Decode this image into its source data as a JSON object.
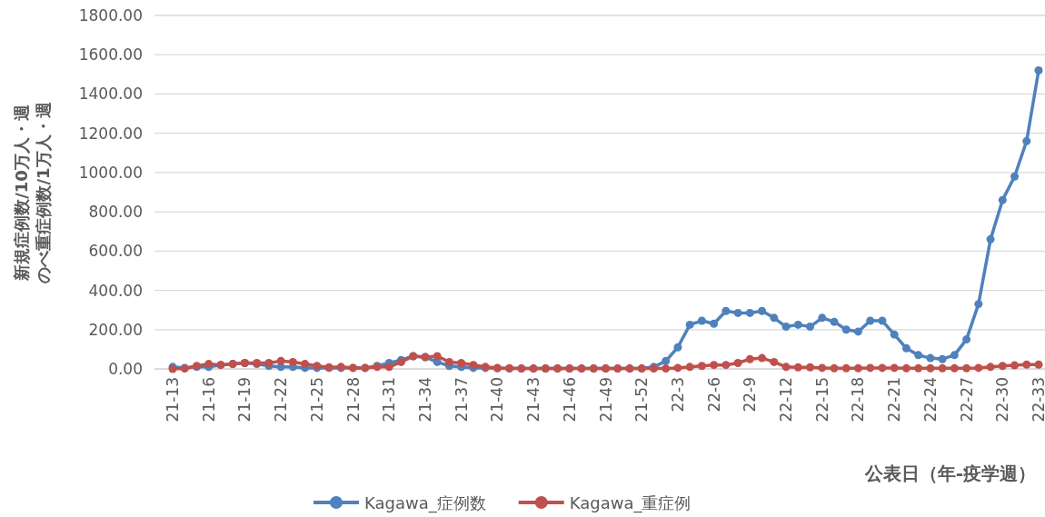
{
  "chart_data": {
    "type": "line",
    "xlabel": "公表日（年-疫学週）",
    "ylabel": "新規症例数/10万人・週のべ重症例数/1万人・週",
    "categories": [
      "21-13",
      null,
      null,
      "21-16",
      null,
      null,
      "21-19",
      null,
      null,
      "21-22",
      null,
      null,
      "21-25",
      null,
      null,
      "21-28",
      null,
      null,
      "21-31",
      null,
      null,
      "21-34",
      null,
      null,
      "21-37",
      null,
      null,
      "21-40",
      null,
      null,
      "21-43",
      null,
      null,
      "21-46",
      null,
      null,
      "21-49",
      null,
      null,
      "21-52",
      null,
      null,
      "22-3",
      null,
      null,
      "22-6",
      null,
      null,
      "22-9",
      null,
      null,
      "22-12",
      null,
      null,
      "22-15",
      null,
      null,
      "22-18",
      null,
      null,
      "22-21",
      null,
      null,
      "22-24",
      null,
      null,
      "22-27",
      null,
      null,
      "22-30",
      null,
      null,
      "22-33"
    ],
    "series": [
      {
        "name": "Kagawa_症例数",
        "color": "#4f81bd",
        "values": [
          10,
          5,
          10,
          10,
          20,
          25,
          30,
          25,
          15,
          10,
          10,
          5,
          5,
          5,
          5,
          5,
          5,
          15,
          30,
          45,
          65,
          60,
          35,
          15,
          10,
          5,
          5,
          3,
          2,
          2,
          2,
          2,
          2,
          2,
          2,
          2,
          2,
          2,
          2,
          2,
          10,
          40,
          110,
          225,
          245,
          230,
          295,
          285,
          285,
          295,
          260,
          215,
          225,
          215,
          260,
          240,
          200,
          190,
          245,
          245,
          175,
          105,
          70,
          55,
          50,
          70,
          150,
          330,
          660,
          860,
          980,
          1160,
          1520
        ]
      },
      {
        "name": "Kagawa_重症例",
        "color": "#c0504d",
        "values": [
          0,
          2,
          15,
          25,
          20,
          25,
          30,
          30,
          30,
          40,
          35,
          25,
          15,
          8,
          10,
          5,
          5,
          10,
          10,
          35,
          65,
          60,
          65,
          35,
          30,
          20,
          10,
          5,
          3,
          2,
          2,
          2,
          2,
          2,
          2,
          2,
          2,
          2,
          2,
          2,
          2,
          2,
          5,
          10,
          15,
          20,
          20,
          30,
          50,
          55,
          35,
          10,
          8,
          8,
          5,
          3,
          3,
          3,
          5,
          5,
          5,
          3,
          3,
          3,
          3,
          3,
          3,
          5,
          10,
          15,
          18,
          22,
          22
        ]
      }
    ],
    "ylim": [
      0,
      1800
    ],
    "yticks": [
      {
        "value": 0,
        "label": "0.00"
      },
      {
        "value": 200,
        "label": "200.00"
      },
      {
        "value": 400,
        "label": "400.00"
      },
      {
        "value": 600,
        "label": "600.00"
      },
      {
        "value": 800,
        "label": "800.00"
      },
      {
        "value": 1000,
        "label": "1000.00"
      },
      {
        "value": 1200,
        "label": "1200.00"
      },
      {
        "value": 1400,
        "label": "1400.00"
      },
      {
        "value": 1600,
        "label": "1600.00"
      },
      {
        "value": 1800,
        "label": "1800.00"
      }
    ],
    "grid": "y",
    "legend": "bottom",
    "marker": "circle",
    "line_style": "solid"
  }
}
